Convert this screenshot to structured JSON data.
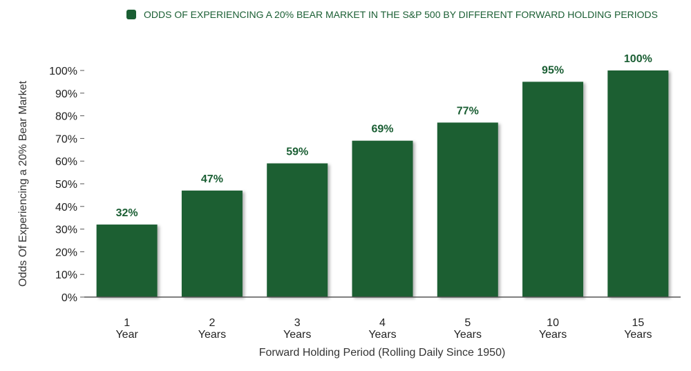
{
  "chart_data": {
    "type": "bar",
    "legend": {
      "placement": "top-center",
      "entries": [
        "ODDS OF EXPERIENCING A 20% BEAR MARKET IN THE S&P 500 BY DIFFERENT FORWARD HOLDING PERIODS"
      ]
    },
    "categories": [
      [
        "1",
        "Year"
      ],
      [
        "2",
        "Years"
      ],
      [
        "3",
        "Years"
      ],
      [
        "4",
        "Years"
      ],
      [
        "5",
        "Years"
      ],
      [
        "10",
        "Years"
      ],
      [
        "15",
        "Years"
      ]
    ],
    "values": [
      32,
      47,
      59,
      69,
      77,
      95,
      100
    ],
    "data_labels": [
      "32%",
      "47%",
      "59%",
      "69%",
      "77%",
      "95%",
      "100%"
    ],
    "xlabel": "Forward Holding Period (Rolling Daily Since 1950)",
    "ylabel": "Odds Of Experiencing a 20% Bear Market",
    "ylim": [
      0,
      100
    ],
    "yticks": [
      0,
      10,
      20,
      30,
      40,
      50,
      60,
      70,
      80,
      90,
      100
    ],
    "ytick_labels": [
      "0%",
      "10%",
      "20%",
      "30%",
      "40%",
      "50%",
      "60%",
      "70%",
      "80%",
      "90%",
      "100%"
    ],
    "grid": false,
    "colors": {
      "bar": "#1a5e33",
      "label": "#1a5e33",
      "axis": "#555555"
    }
  }
}
